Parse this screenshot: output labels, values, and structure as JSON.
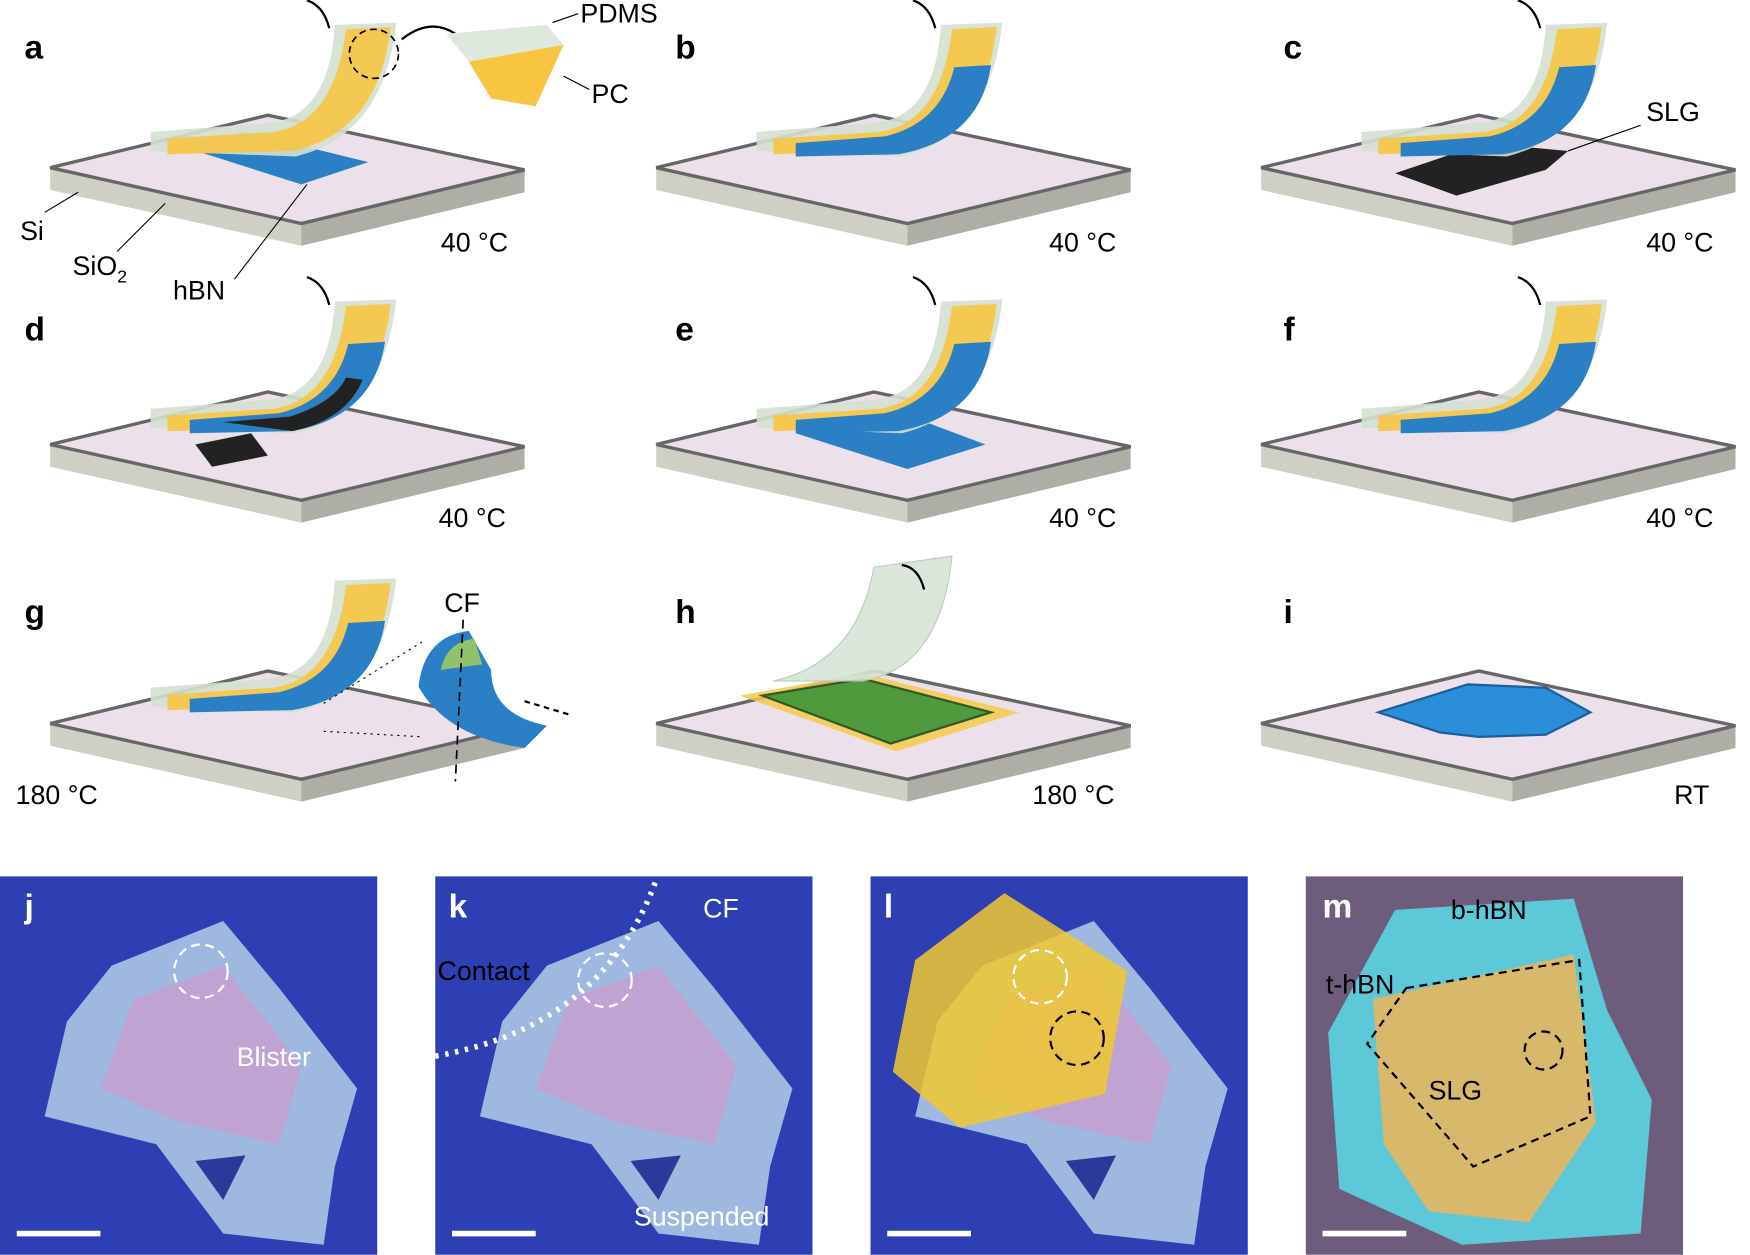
{
  "panels": [
    {
      "letter": "a",
      "temperature": "40 °C"
    },
    {
      "letter": "b",
      "temperature": "40 °C"
    },
    {
      "letter": "c",
      "temperature": "40 °C"
    },
    {
      "letter": "d",
      "temperature": "40 °C"
    },
    {
      "letter": "e",
      "temperature": "40 °C"
    },
    {
      "letter": "f",
      "temperature": "40 °C"
    },
    {
      "letter": "g",
      "temperature": "180 °C"
    },
    {
      "letter": "h",
      "temperature": "180 °C"
    },
    {
      "letter": "i",
      "temperature": "RT"
    }
  ],
  "annotations": {
    "pdms": "PDMS",
    "pc": "PC",
    "si": "Si",
    "sio2": {
      "base": "SiO",
      "subscript": "2"
    },
    "hbn": "hBN",
    "slg": "SLG",
    "cf": "CF"
  },
  "micrographs": [
    {
      "letter": "j",
      "labels": [
        "Blister"
      ]
    },
    {
      "letter": "k",
      "labels": [
        "Contact",
        "CF",
        "Suspended"
      ]
    },
    {
      "letter": "l"
    },
    {
      "letter": "m",
      "labels": [
        "b-hBN",
        "t-hBN",
        "SLG"
      ]
    }
  ]
}
